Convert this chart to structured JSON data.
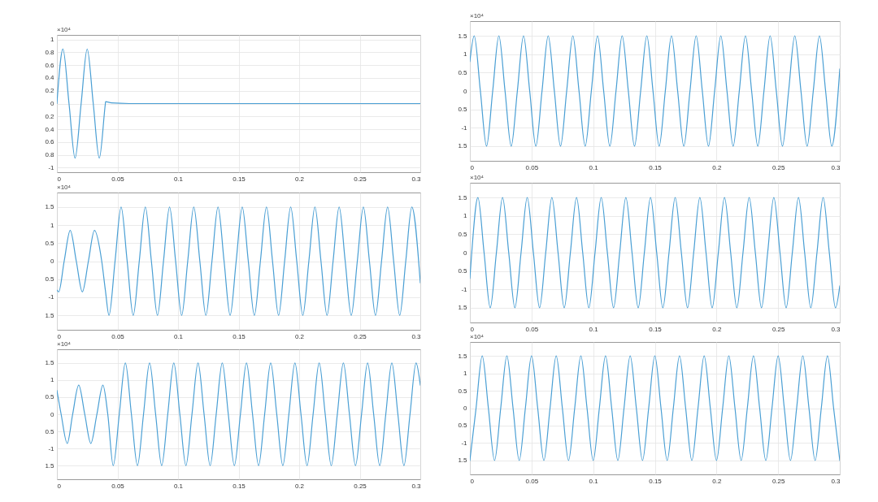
{
  "chart_data": [
    {
      "type": "line",
      "color": "#4a9fd4",
      "annotations": [
        "×10⁴"
      ],
      "grid": true,
      "xlim": [
        0,
        0.3
      ],
      "xticks": [
        0,
        0.05,
        0.1,
        0.15,
        0.2,
        0.25,
        0.3
      ],
      "ylim": [
        -1.07,
        1.07
      ],
      "yticks": [
        1,
        0.8,
        0.6,
        0.4,
        0.2,
        0,
        {
          "value": -0.2,
          "label": "0.2"
        },
        {
          "value": -0.4,
          "label": "0.4"
        },
        {
          "value": -0.6,
          "label": "0.6"
        },
        {
          "value": -0.8,
          "label": "0.8"
        },
        -1
      ],
      "x": [
        0,
        0.005,
        0.01,
        0.015,
        0.02,
        0.025,
        0.03,
        0.035,
        0.04,
        0.0402,
        0.045,
        0.06,
        0.08,
        0.3
      ],
      "values": [
        0,
        0.85,
        0,
        -0.85,
        0,
        0.85,
        0,
        -0.85,
        0,
        0.03,
        0.01,
        0,
        0,
        0
      ]
    },
    {
      "type": "line",
      "color": "#4a9fd4",
      "annotations": [
        "×10⁴"
      ],
      "grid": true,
      "xlim": [
        0,
        0.3
      ],
      "xticks": [
        0,
        0.05,
        0.1,
        0.15,
        0.2,
        0.25,
        0.3
      ],
      "ylim": [
        -1.9,
        1.9
      ],
      "yticks": [
        1.5,
        1,
        0.5,
        0,
        {
          "value": -0.5,
          "label": "0.5"
        },
        -1,
        {
          "value": -1.5,
          "label": "1.5"
        }
      ],
      "x": [
        0,
        0.0035,
        0.0085,
        0.0135,
        0.0185,
        0.0235,
        0.0285,
        0.0335,
        0.0385,
        0.0435,
        0.0485,
        0.0535,
        0.0585,
        0.0635,
        0.0685,
        0.0735,
        0.0785,
        0.0835,
        0.0885,
        0.0935,
        0.0985,
        0.1035,
        0.1085,
        0.1135,
        0.1185,
        0.1235,
        0.1285,
        0.1335,
        0.1385,
        0.1435,
        0.1485,
        0.1535,
        0.1585,
        0.1635,
        0.1685,
        0.1735,
        0.1785,
        0.1835,
        0.1885,
        0.1935,
        0.1985,
        0.2035,
        0.2085,
        0.2135,
        0.2185,
        0.2235,
        0.2285,
        0.2335,
        0.2385,
        0.2435,
        0.2485,
        0.2535,
        0.2585,
        0.2635,
        0.2685,
        0.2735,
        0.2785,
        0.2835,
        0.2885,
        0.2935,
        0.3
      ],
      "values": [
        0.8,
        1.5,
        0,
        -1.5,
        0,
        1.5,
        0,
        -1.5,
        0,
        1.5,
        0,
        -1.5,
        0,
        1.5,
        0,
        -1.5,
        0,
        1.5,
        0,
        -1.5,
        0,
        1.5,
        0,
        -1.5,
        0,
        1.5,
        0,
        -1.5,
        0,
        1.5,
        0,
        -1.5,
        0,
        1.5,
        0,
        -1.5,
        0,
        1.5,
        0,
        -1.5,
        0,
        1.5,
        0,
        -1.5,
        0,
        1.5,
        0,
        -1.5,
        0,
        1.5,
        0,
        -1.5,
        0,
        1.5,
        0,
        -1.5,
        0,
        1.5,
        0,
        -1.5,
        0.6
      ]
    },
    {
      "type": "line",
      "color": "#4a9fd4",
      "annotations": [
        "×10⁴"
      ],
      "grid": true,
      "xlim": [
        0,
        0.3
      ],
      "xticks": [
        0,
        0.05,
        0.1,
        0.15,
        0.2,
        0.25,
        0.3
      ],
      "ylim": [
        -1.9,
        1.9
      ],
      "yticks": [
        1.5,
        1,
        0.5,
        0,
        {
          "value": -0.5,
          "label": "0.5"
        },
        -1,
        {
          "value": -1.5,
          "label": "1.5"
        }
      ],
      "x": [
        0,
        0.0015,
        0.006,
        0.011,
        0.016,
        0.021,
        0.026,
        0.031,
        0.037,
        0.04,
        0.043,
        0.048,
        0.053,
        0.058,
        0.063,
        0.068,
        0.073,
        0.078,
        0.083,
        0.088,
        0.093,
        0.098,
        0.103,
        0.108,
        0.113,
        0.118,
        0.123,
        0.128,
        0.133,
        0.138,
        0.143,
        0.148,
        0.153,
        0.158,
        0.163,
        0.168,
        0.173,
        0.178,
        0.183,
        0.188,
        0.193,
        0.198,
        0.203,
        0.208,
        0.213,
        0.218,
        0.223,
        0.228,
        0.233,
        0.238,
        0.243,
        0.248,
        0.253,
        0.258,
        0.263,
        0.268,
        0.273,
        0.278,
        0.283,
        0.288,
        0.293,
        0.3
      ],
      "values": [
        -0.8,
        -0.85,
        0,
        0.85,
        0,
        -0.85,
        0,
        0.85,
        0,
        -0.8,
        -1.5,
        0,
        1.5,
        0,
        -1.5,
        0,
        1.5,
        0,
        -1.5,
        0,
        1.5,
        0,
        -1.5,
        0,
        1.5,
        0,
        -1.5,
        0,
        1.5,
        0,
        -1.5,
        0,
        1.5,
        0,
        -1.5,
        0,
        1.5,
        0,
        -1.5,
        0,
        1.5,
        0,
        -1.5,
        0,
        1.5,
        0,
        -1.5,
        0,
        1.5,
        0,
        -1.5,
        0,
        1.5,
        0,
        -1.5,
        0,
        1.5,
        0,
        -1.5,
        0,
        1.5,
        -0.6
      ]
    },
    {
      "type": "line",
      "color": "#4a9fd4",
      "annotations": [
        "×10⁴"
      ],
      "grid": true,
      "xlim": [
        0,
        0.3
      ],
      "xticks": [
        0,
        0.05,
        0.1,
        0.15,
        0.2,
        0.25,
        0.3
      ],
      "ylim": [
        -1.9,
        1.9
      ],
      "yticks": [
        1.5,
        1,
        0.5,
        0,
        {
          "value": -0.5,
          "label": "0.5"
        },
        -1,
        {
          "value": -1.5,
          "label": "1.5"
        }
      ],
      "x": [
        0,
        0.0015,
        0.0065,
        0.0115,
        0.0165,
        0.0215,
        0.0265,
        0.0315,
        0.0365,
        0.0415,
        0.0465,
        0.0515,
        0.0565,
        0.0615,
        0.0665,
        0.0715,
        0.0765,
        0.0815,
        0.0865,
        0.0915,
        0.0965,
        0.1015,
        0.1065,
        0.1115,
        0.1165,
        0.1215,
        0.1265,
        0.1315,
        0.1365,
        0.1415,
        0.1465,
        0.1515,
        0.1565,
        0.1615,
        0.1665,
        0.1715,
        0.1765,
        0.1815,
        0.1865,
        0.1915,
        0.1965,
        0.2015,
        0.2065,
        0.2115,
        0.2165,
        0.2215,
        0.2265,
        0.2315,
        0.2365,
        0.2415,
        0.2465,
        0.2515,
        0.2565,
        0.2615,
        0.2665,
        0.2715,
        0.2765,
        0.2815,
        0.2865,
        0.2915,
        0.2965,
        0.3
      ],
      "values": [
        -0.7,
        0,
        1.5,
        0,
        -1.5,
        0,
        1.5,
        0,
        -1.5,
        0,
        1.5,
        0,
        -1.5,
        0,
        1.5,
        0,
        -1.5,
        0,
        1.5,
        0,
        -1.5,
        0,
        1.5,
        0,
        -1.5,
        0,
        1.5,
        0,
        -1.5,
        0,
        1.5,
        0,
        -1.5,
        0,
        1.5,
        0,
        -1.5,
        0,
        1.5,
        0,
        -1.5,
        0,
        1.5,
        0,
        -1.5,
        0,
        1.5,
        0,
        -1.5,
        0,
        1.5,
        0,
        -1.5,
        0,
        1.5,
        0,
        -1.5,
        0,
        1.5,
        0,
        -1.5,
        -0.9
      ]
    },
    {
      "type": "line",
      "color": "#4a9fd4",
      "annotations": [
        "×10⁴"
      ],
      "grid": true,
      "xlim": [
        0,
        0.3
      ],
      "xticks": [
        0,
        0.05,
        0.1,
        0.15,
        0.2,
        0.25,
        0.3
      ],
      "ylim": [
        -1.9,
        1.9
      ],
      "yticks": [
        1.5,
        1,
        0.5,
        0,
        {
          "value": -0.5,
          "label": "0.5"
        },
        -1,
        {
          "value": -1.5,
          "label": "1.5"
        }
      ],
      "x": [
        0,
        0.0035,
        0.0085,
        0.013,
        0.018,
        0.023,
        0.028,
        0.033,
        0.038,
        0.042,
        0.0465,
        0.0515,
        0.0565,
        0.0615,
        0.0665,
        0.0715,
        0.0765,
        0.0815,
        0.0865,
        0.0915,
        0.0965,
        0.1015,
        0.1065,
        0.1115,
        0.1165,
        0.1215,
        0.1265,
        0.1315,
        0.1365,
        0.1415,
        0.1465,
        0.1515,
        0.1565,
        0.1615,
        0.1665,
        0.1715,
        0.1765,
        0.1815,
        0.1865,
        0.1915,
        0.1965,
        0.2015,
        0.2065,
        0.2115,
        0.2165,
        0.2215,
        0.2265,
        0.2315,
        0.2365,
        0.2415,
        0.2465,
        0.2515,
        0.2565,
        0.2615,
        0.2665,
        0.2715,
        0.2765,
        0.2815,
        0.2865,
        0.2915,
        0.2965,
        0.3
      ],
      "values": [
        0.7,
        0,
        -0.85,
        0,
        0.85,
        0,
        -0.85,
        0,
        0.85,
        0,
        -1.5,
        0,
        1.5,
        0,
        -1.5,
        0,
        1.5,
        0,
        -1.5,
        0,
        1.5,
        0,
        -1.5,
        0,
        1.5,
        0,
        -1.5,
        0,
        1.5,
        0,
        -1.5,
        0,
        1.5,
        0,
        -1.5,
        0,
        1.5,
        0,
        -1.5,
        0,
        1.5,
        0,
        -1.5,
        0,
        1.5,
        0,
        -1.5,
        0,
        1.5,
        0,
        -1.5,
        0,
        1.5,
        0,
        -1.5,
        0,
        1.5,
        0,
        -1.5,
        0,
        1.5,
        0.85
      ]
    },
    {
      "type": "line",
      "color": "#4a9fd4",
      "annotations": [
        "×10⁴"
      ],
      "grid": true,
      "xlim": [
        0,
        0.3
      ],
      "xticks": [
        0,
        0.05,
        0.1,
        0.15,
        0.2,
        0.25,
        0.3
      ],
      "ylim": [
        -1.9,
        1.9
      ],
      "yticks": [
        1.5,
        1,
        0.5,
        0,
        {
          "value": -0.5,
          "label": "0.5"
        },
        -1,
        {
          "value": -1.5,
          "label": "1.5"
        }
      ],
      "x": [
        0,
        0.005,
        0.01,
        0.015,
        0.02,
        0.025,
        0.03,
        0.035,
        0.04,
        0.045,
        0.05,
        0.055,
        0.06,
        0.065,
        0.07,
        0.075,
        0.08,
        0.085,
        0.09,
        0.095,
        0.1,
        0.105,
        0.11,
        0.115,
        0.12,
        0.125,
        0.13,
        0.135,
        0.14,
        0.145,
        0.15,
        0.155,
        0.16,
        0.165,
        0.17,
        0.175,
        0.18,
        0.185,
        0.19,
        0.195,
        0.2,
        0.205,
        0.21,
        0.215,
        0.22,
        0.225,
        0.23,
        0.235,
        0.24,
        0.245,
        0.25,
        0.255,
        0.26,
        0.265,
        0.27,
        0.275,
        0.28,
        0.285,
        0.29,
        0.295,
        0.3
      ],
      "values": [
        -1.5,
        0,
        1.5,
        0,
        -1.5,
        0,
        1.5,
        0,
        -1.5,
        0,
        1.5,
        0,
        -1.5,
        0,
        1.5,
        0,
        -1.5,
        0,
        1.5,
        0,
        -1.5,
        0,
        1.5,
        0,
        -1.5,
        0,
        1.5,
        0,
        -1.5,
        0,
        1.5,
        0,
        -1.5,
        0,
        1.5,
        0,
        -1.5,
        0,
        1.5,
        0,
        -1.5,
        0,
        1.5,
        0,
        -1.5,
        0,
        1.5,
        0,
        -1.5,
        0,
        1.5,
        0,
        -1.5,
        0,
        1.5,
        0,
        -1.5,
        0,
        1.5,
        0,
        -1.5
      ]
    }
  ]
}
